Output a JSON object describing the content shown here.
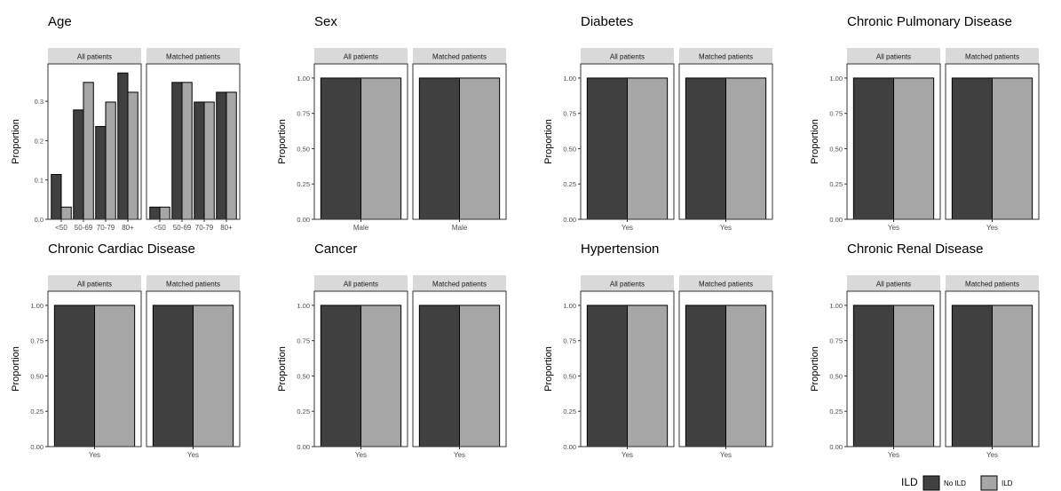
{
  "page_title_fragment": "",
  "legend": {
    "title": "ILD",
    "items": [
      {
        "label": "No ILD",
        "color": "#404040"
      },
      {
        "label": "ILD",
        "color": "#a6a6a6"
      }
    ]
  },
  "facet_labels": [
    "All patients",
    "Matched patients"
  ],
  "chart_data": [
    {
      "type": "bar",
      "title": "Age",
      "ylabel": "Proportion",
      "xlabel": "",
      "ylim": [
        0,
        0.395
      ],
      "yticks": [
        0.0,
        0.1,
        0.2,
        0.3
      ],
      "ytick_labels": [
        "0.0",
        "0.1",
        "0.2",
        "0.3"
      ],
      "categories": [
        "<50",
        "50-69",
        "70-79",
        "80+"
      ],
      "facets": [
        {
          "name": "All patients",
          "series": [
            {
              "name": "No ILD",
              "values": [
                0.114,
                0.278,
                0.236,
                0.372
              ]
            },
            {
              "name": "ILD",
              "values": [
                0.031,
                0.348,
                0.298,
                0.323
              ]
            }
          ]
        },
        {
          "name": "Matched patients",
          "series": [
            {
              "name": "No ILD",
              "values": [
                0.031,
                0.348,
                0.298,
                0.323
              ]
            },
            {
              "name": "ILD",
              "values": [
                0.031,
                0.348,
                0.298,
                0.323
              ]
            }
          ]
        }
      ]
    },
    {
      "type": "bar",
      "title": "Sex",
      "ylabel": "Proportion",
      "xlabel": "",
      "ylim": [
        0,
        1.1
      ],
      "yticks": [
        0,
        0.25,
        0.5,
        0.75,
        1.0
      ],
      "ytick_labels": [
        "0.00",
        "0.25",
        "0.50",
        "0.75",
        "1.00"
      ],
      "categories": [
        "Male"
      ],
      "facets": [
        {
          "name": "All patients",
          "series": [
            {
              "name": "No ILD",
              "values": [
                1.0
              ]
            },
            {
              "name": "ILD",
              "values": [
                1.0
              ]
            }
          ]
        },
        {
          "name": "Matched patients",
          "series": [
            {
              "name": "No ILD",
              "values": [
                1.0
              ]
            },
            {
              "name": "ILD",
              "values": [
                1.0
              ]
            }
          ]
        }
      ]
    },
    {
      "type": "bar",
      "title": "Diabetes",
      "ylabel": "Proportion",
      "xlabel": "",
      "ylim": [
        0,
        1.1
      ],
      "yticks": [
        0,
        0.25,
        0.5,
        0.75,
        1.0
      ],
      "ytick_labels": [
        "0.00",
        "0.25",
        "0.50",
        "0.75",
        "1.00"
      ],
      "categories": [
        "Yes"
      ],
      "facets": [
        {
          "name": "All patients",
          "series": [
            {
              "name": "No ILD",
              "values": [
                1.0
              ]
            },
            {
              "name": "ILD",
              "values": [
                1.0
              ]
            }
          ]
        },
        {
          "name": "Matched patients",
          "series": [
            {
              "name": "No ILD",
              "values": [
                1.0
              ]
            },
            {
              "name": "ILD",
              "values": [
                1.0
              ]
            }
          ]
        }
      ]
    },
    {
      "type": "bar",
      "title": "Chronic Pulmonary Disease",
      "ylabel": "Proportion",
      "xlabel": "",
      "ylim": [
        0,
        1.1
      ],
      "yticks": [
        0,
        0.25,
        0.5,
        0.75,
        1.0
      ],
      "ytick_labels": [
        "0.00",
        "0.25",
        "0.50",
        "0.75",
        "1.00"
      ],
      "categories": [
        "Yes"
      ],
      "facets": [
        {
          "name": "All patients",
          "series": [
            {
              "name": "No ILD",
              "values": [
                1.0
              ]
            },
            {
              "name": "ILD",
              "values": [
                1.0
              ]
            }
          ]
        },
        {
          "name": "Matched patients",
          "series": [
            {
              "name": "No ILD",
              "values": [
                1.0
              ]
            },
            {
              "name": "ILD",
              "values": [
                1.0
              ]
            }
          ]
        }
      ]
    },
    {
      "type": "bar",
      "title": "Chronic Cardiac Disease",
      "ylabel": "Proportion",
      "xlabel": "",
      "ylim": [
        0,
        1.1
      ],
      "yticks": [
        0,
        0.25,
        0.5,
        0.75,
        1.0
      ],
      "ytick_labels": [
        "0.00",
        "0.25",
        "0.50",
        "0.75",
        "1.00"
      ],
      "categories": [
        "Yes"
      ],
      "facets": [
        {
          "name": "All patients",
          "series": [
            {
              "name": "No ILD",
              "values": [
                1.0
              ]
            },
            {
              "name": "ILD",
              "values": [
                1.0
              ]
            }
          ]
        },
        {
          "name": "Matched patients",
          "series": [
            {
              "name": "No ILD",
              "values": [
                1.0
              ]
            },
            {
              "name": "ILD",
              "values": [
                1.0
              ]
            }
          ]
        }
      ]
    },
    {
      "type": "bar",
      "title": "Cancer",
      "ylabel": "Proportion",
      "xlabel": "",
      "ylim": [
        0,
        1.1
      ],
      "yticks": [
        0,
        0.25,
        0.5,
        0.75,
        1.0
      ],
      "ytick_labels": [
        "0.00",
        "0.25",
        "0.50",
        "0.75",
        "1.00"
      ],
      "categories": [
        "Yes"
      ],
      "facets": [
        {
          "name": "All patients",
          "series": [
            {
              "name": "No ILD",
              "values": [
                1.0
              ]
            },
            {
              "name": "ILD",
              "values": [
                1.0
              ]
            }
          ]
        },
        {
          "name": "Matched patients",
          "series": [
            {
              "name": "No ILD",
              "values": [
                1.0
              ]
            },
            {
              "name": "ILD",
              "values": [
                1.0
              ]
            }
          ]
        }
      ]
    },
    {
      "type": "bar",
      "title": "Hypertension",
      "ylabel": "Proportion",
      "xlabel": "",
      "ylim": [
        0,
        1.1
      ],
      "yticks": [
        0,
        0.25,
        0.5,
        0.75,
        1.0
      ],
      "ytick_labels": [
        "0.00",
        "0.25",
        "0.50",
        "0.75",
        "1.00"
      ],
      "categories": [
        "Yes"
      ],
      "facets": [
        {
          "name": "All patients",
          "series": [
            {
              "name": "No ILD",
              "values": [
                1.0
              ]
            },
            {
              "name": "ILD",
              "values": [
                1.0
              ]
            }
          ]
        },
        {
          "name": "Matched patients",
          "series": [
            {
              "name": "No ILD",
              "values": [
                1.0
              ]
            },
            {
              "name": "ILD",
              "values": [
                1.0
              ]
            }
          ]
        }
      ]
    },
    {
      "type": "bar",
      "title": "Chronic Renal Disease",
      "ylabel": "Proportion",
      "xlabel": "",
      "ylim": [
        0,
        1.1
      ],
      "yticks": [
        0,
        0.25,
        0.5,
        0.75,
        1.0
      ],
      "ytick_labels": [
        "0.00",
        "0.25",
        "0.50",
        "0.75",
        "1.00"
      ],
      "categories": [
        "Yes"
      ],
      "facets": [
        {
          "name": "All patients",
          "series": [
            {
              "name": "No ILD",
              "values": [
                1.0
              ]
            },
            {
              "name": "ILD",
              "values": [
                1.0
              ]
            }
          ]
        },
        {
          "name": "Matched patients",
          "series": [
            {
              "name": "No ILD",
              "values": [
                1.0
              ]
            },
            {
              "name": "ILD",
              "values": [
                1.0
              ]
            }
          ]
        }
      ]
    }
  ]
}
